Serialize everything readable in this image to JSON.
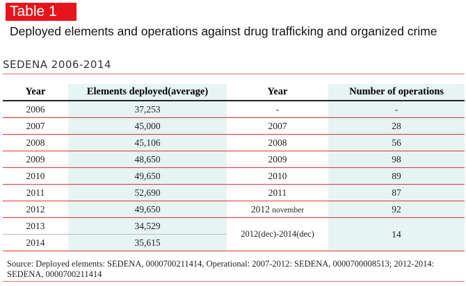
{
  "badge": "Table 1",
  "title": "Deployed elements and operations against drug trafficking and organized crime",
  "subtitle": "SEDENA 2006-2014",
  "headers": {
    "year1": "Year",
    "elements": "Elements deployed(average)",
    "year2": "Year",
    "operations": "Number of operations"
  },
  "rows": [
    {
      "year": "2006",
      "elements": "37,253",
      "year2": "-",
      "ops": "-"
    },
    {
      "year": "2007",
      "elements": "45,000",
      "year2": "2007",
      "ops": "28"
    },
    {
      "year": "2008",
      "elements": "45,106",
      "year2": "2008",
      "ops": "56"
    },
    {
      "year": "2009",
      "elements": "48,650",
      "year2": "2009",
      "ops": "98"
    },
    {
      "year": "2010",
      "elements": "49,650",
      "year2": "2010",
      "ops": "89"
    },
    {
      "year": "2011",
      "elements": "52,690",
      "year2": "2011",
      "ops": "87"
    },
    {
      "year": "2012",
      "elements": "49,650",
      "year2": "2012",
      "year2_note": "november",
      "ops": "92"
    },
    {
      "year": "2013",
      "elements": "34,529"
    },
    {
      "year": "2014",
      "elements": "35,615"
    }
  ],
  "merged_row": {
    "year2": "2012(dec)-2014(dec)",
    "ops": "14"
  },
  "source": "Source: Deployed elements: SEDENA, 0000700211414, Operational: 2007-2012: SEDENA, 0000700008513; 2012-2014: SEDENA, 0000700211414"
}
